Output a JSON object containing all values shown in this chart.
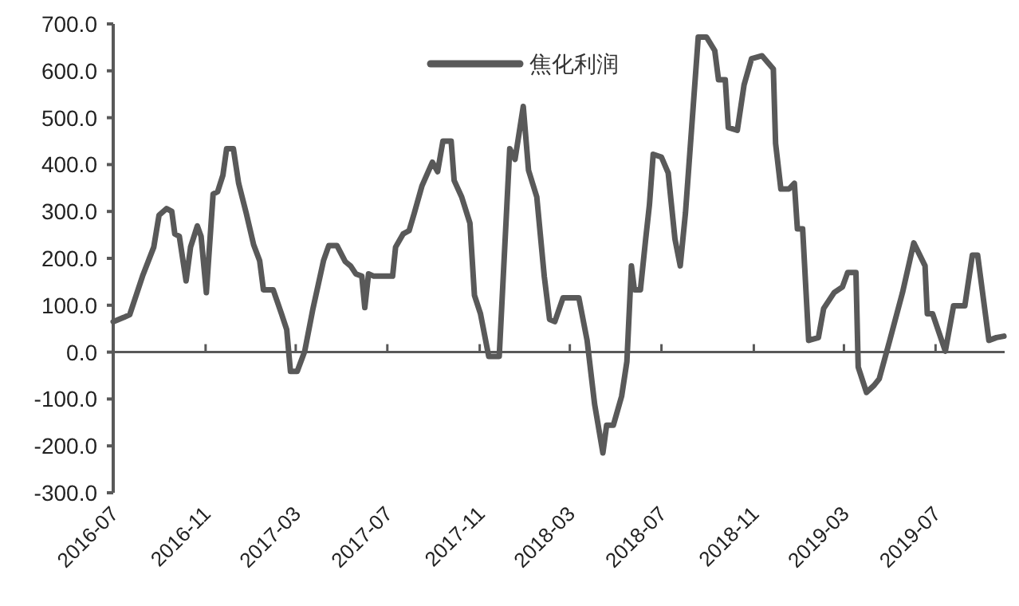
{
  "chart_data": {
    "type": "line",
    "legend": "top",
    "marker": "none",
    "line_style": "solid",
    "xlim": [
      "2016-07-01",
      "2019-10-01"
    ],
    "xticks": [
      "2016-07",
      "2016-11",
      "2017-03",
      "2017-07",
      "2017-11",
      "2018-03",
      "2018-07",
      "2018-11",
      "2019-03",
      "2019-07"
    ],
    "ylim": [
      -300,
      700
    ],
    "yticks": [
      {
        "value": -300,
        "label": "-300.0"
      },
      {
        "value": -200,
        "label": "-200.0"
      },
      {
        "value": -100,
        "label": "-100.0"
      },
      {
        "value": 0,
        "label": "0.0"
      },
      {
        "value": 100,
        "label": "100.0"
      },
      {
        "value": 200,
        "label": "200.0"
      },
      {
        "value": 300,
        "label": "300.0"
      },
      {
        "value": 400,
        "label": "400.0"
      },
      {
        "value": 500,
        "label": "500.0"
      },
      {
        "value": 600,
        "label": "600.0"
      },
      {
        "value": 700,
        "label": "700.0"
      }
    ],
    "x": [
      "2016-07-01",
      "2016-07-15",
      "2016-07-23",
      "2016-08-09",
      "2016-08-24",
      "2016-08-31",
      "2016-09-10",
      "2016-09-17",
      "2016-09-21",
      "2016-09-27",
      "2016-10-06",
      "2016-10-12",
      "2016-10-21",
      "2016-10-26",
      "2016-11-02",
      "2016-11-11",
      "2016-11-17",
      "2016-11-24",
      "2016-11-29",
      "2016-12-08",
      "2016-12-15",
      "2016-12-25",
      "2017-01-04",
      "2017-01-12",
      "2017-01-17",
      "2017-01-30",
      "2017-02-10",
      "2017-02-17",
      "2017-02-22",
      "2017-03-03",
      "2017-03-13",
      "2017-03-24",
      "2017-04-07",
      "2017-04-14",
      "2017-04-25",
      "2017-05-06",
      "2017-05-13",
      "2017-05-20",
      "2017-05-28",
      "2017-06-01",
      "2017-06-06",
      "2017-06-13",
      "2017-07-08",
      "2017-07-12",
      "2017-07-22",
      "2017-07-30",
      "2017-08-06",
      "2017-08-16",
      "2017-08-30",
      "2017-09-06",
      "2017-09-13",
      "2017-09-24",
      "2017-09-28",
      "2017-10-08",
      "2017-10-19",
      "2017-10-25",
      "2017-11-02",
      "2017-11-13",
      "2017-11-27",
      "2017-12-11",
      "2017-12-18",
      "2017-12-29",
      "2018-01-05",
      "2018-01-16",
      "2018-01-26",
      "2018-02-02",
      "2018-02-09",
      "2018-02-20",
      "2018-03-13",
      "2018-03-24",
      "2018-04-03",
      "2018-04-14",
      "2018-04-19",
      "2018-04-28",
      "2018-05-09",
      "2018-05-16",
      "2018-05-22",
      "2018-05-26",
      "2018-06-03",
      "2018-06-10",
      "2018-06-15",
      "2018-06-20",
      "2018-07-01",
      "2018-07-10",
      "2018-07-19",
      "2018-07-26",
      "2018-08-02",
      "2018-08-19",
      "2018-08-30",
      "2018-09-10",
      "2018-09-15",
      "2018-09-24",
      "2018-09-28",
      "2018-10-10",
      "2018-10-19",
      "2018-10-29",
      "2018-11-12",
      "2018-11-27",
      "2018-11-30",
      "2018-12-07",
      "2018-12-18",
      "2018-12-25",
      "2018-12-29",
      "2019-01-05",
      "2019-01-13",
      "2019-01-26",
      "2019-02-02",
      "2019-02-16",
      "2019-02-27",
      "2019-03-06",
      "2019-03-17",
      "2019-03-20",
      "2019-03-31",
      "2019-04-10",
      "2019-04-17",
      "2019-05-01",
      "2019-05-18",
      "2019-06-02",
      "2019-06-17",
      "2019-06-20",
      "2019-06-27",
      "2019-07-14",
      "2019-07-25",
      "2019-08-09",
      "2019-08-19",
      "2019-08-26",
      "2019-09-10",
      "2019-09-20",
      "2019-09-30"
    ],
    "series": [
      {
        "name": "焦化利润",
        "color": "#595959",
        "values": [
          65,
          74,
          80,
          162,
          224,
          292,
          306,
          300,
          252,
          247,
          152,
          224,
          269,
          247,
          127,
          337,
          342,
          377,
          434,
          434,
          360,
          297,
          229,
          195,
          133,
          133,
          82,
          48,
          -41,
          -41,
          2,
          93,
          195,
          227,
          227,
          193,
          184,
          167,
          162,
          95,
          167,
          162,
          162,
          224,
          252,
          259,
          297,
          354,
          405,
          385,
          450,
          450,
          366,
          331,
          275,
          121,
          82,
          -9,
          -9,
          434,
          411,
          524,
          388,
          331,
          161,
          70,
          65,
          116,
          116,
          25,
          -111,
          -215,
          -156,
          -156,
          -94,
          -20,
          184,
          133,
          133,
          241,
          314,
          422,
          416,
          382,
          241,
          184,
          297,
          672,
          672,
          643,
          581,
          581,
          479,
          473,
          570,
          626,
          632,
          604,
          445,
          348,
          348,
          360,
          263,
          263,
          25,
          31,
          93,
          127,
          139,
          170,
          170,
          -32,
          -86,
          -71,
          -57,
          25,
          127,
          233,
          184,
          82,
          82,
          2,
          99,
          99,
          207,
          207,
          25,
          31,
          34
        ]
      }
    ]
  }
}
